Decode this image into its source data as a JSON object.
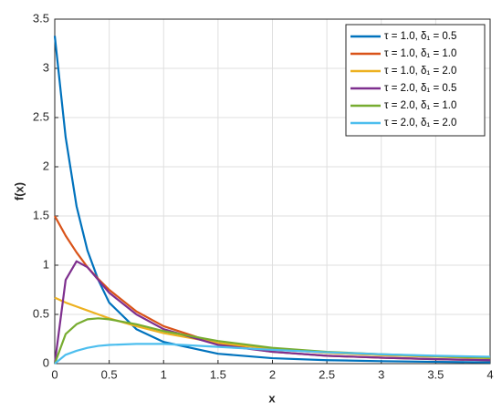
{
  "chart_data": {
    "type": "line",
    "xlabel": "x",
    "ylabel": "f(x)",
    "x": [
      0,
      0.1,
      0.2,
      0.3,
      0.4,
      0.5,
      0.75,
      1,
      1.5,
      2,
      2.5,
      3,
      3.5,
      4
    ],
    "series": [
      {
        "name": "τ = 1.0, δ₁ = 0.5",
        "color": "#0072bd",
        "values": [
          3.33,
          2.3,
          1.6,
          1.15,
          0.85,
          0.62,
          0.35,
          0.22,
          0.1,
          0.055,
          0.035,
          0.025,
          0.018,
          0.013
        ]
      },
      {
        "name": "τ = 1.0, δ₁ = 1.0",
        "color": "#d95319",
        "values": [
          1.5,
          1.3,
          1.13,
          0.98,
          0.86,
          0.75,
          0.53,
          0.38,
          0.2,
          0.12,
          0.08,
          0.06,
          0.045,
          0.035
        ]
      },
      {
        "name": "τ = 1.0, δ₁ = 2.0",
        "color": "#edb120",
        "values": [
          0.67,
          0.62,
          0.58,
          0.54,
          0.5,
          0.46,
          0.38,
          0.31,
          0.21,
          0.15,
          0.11,
          0.085,
          0.07,
          0.055
        ]
      },
      {
        "name": "τ = 2.0, δ₁ = 0.5",
        "color": "#7e2f8e",
        "values": [
          0,
          0.85,
          1.04,
          0.98,
          0.85,
          0.72,
          0.5,
          0.35,
          0.19,
          0.12,
          0.08,
          0.06,
          0.045,
          0.035
        ]
      },
      {
        "name": "τ = 2.0, δ₁ = 1.0",
        "color": "#77ac30",
        "values": [
          0,
          0.3,
          0.4,
          0.45,
          0.46,
          0.45,
          0.4,
          0.33,
          0.23,
          0.16,
          0.12,
          0.095,
          0.075,
          0.06
        ]
      },
      {
        "name": "τ = 2.0, δ₁ = 2.0",
        "color": "#4dbeee",
        "values": [
          0,
          0.09,
          0.13,
          0.16,
          0.18,
          0.19,
          0.2,
          0.2,
          0.17,
          0.14,
          0.115,
          0.095,
          0.08,
          0.07
        ]
      }
    ],
    "xlim": [
      0,
      4
    ],
    "xticks": [
      0,
      0.5,
      1,
      1.5,
      2,
      2.5,
      3,
      3.5,
      4
    ],
    "ylim": [
      0,
      3.5
    ],
    "yticks": [
      0,
      0.5,
      1,
      1.5,
      2,
      2.5,
      3,
      3.5
    ],
    "grid": true,
    "legend": "northeast"
  }
}
